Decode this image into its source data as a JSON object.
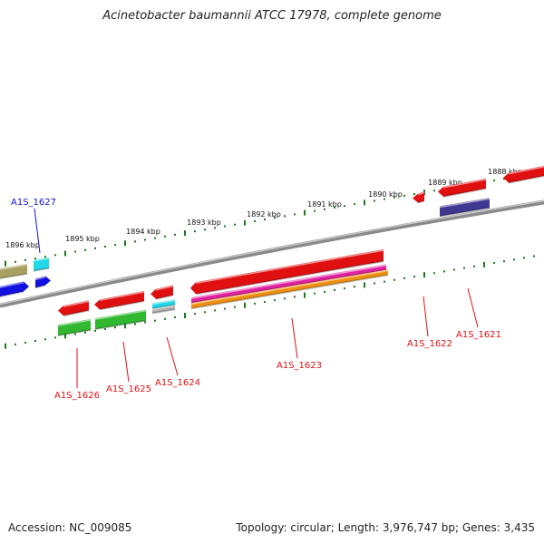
{
  "title": "Acinetobacter baumannii ATCC 17978, complete genome",
  "footer": {
    "accession": "Accession: NC_009085",
    "summary": "Topology: circular; Length: 3,976,747 bp; Genes: 3,435"
  },
  "colors": {
    "backbone": "#8a8a8a",
    "ticks": "#1e7a1e",
    "forward_label": "#1010cc",
    "reverse_label": "#dd1111"
  },
  "ruler": [
    {
      "label": "1888 kbp"
    },
    {
      "label": "1889 kbp"
    },
    {
      "label": "1890 kbp"
    },
    {
      "label": "1891 kbp"
    },
    {
      "label": "1892 kbp"
    },
    {
      "label": "1893 kbp"
    },
    {
      "label": "1894 kbp"
    },
    {
      "label": "1895 kbp"
    },
    {
      "label": "1896 kbp"
    }
  ],
  "gene_labels": [
    {
      "name": "A1S_1627",
      "strand": "forward"
    },
    {
      "name": "A1S_1626",
      "strand": "reverse"
    },
    {
      "name": "A1S_1625",
      "strand": "reverse"
    },
    {
      "name": "A1S_1624",
      "strand": "reverse"
    },
    {
      "name": "A1S_1623",
      "strand": "reverse"
    },
    {
      "name": "A1S_1622",
      "strand": "reverse"
    },
    {
      "name": "A1S_1621",
      "strand": "reverse"
    }
  ],
  "feature_colors": {
    "olive": "#a8a060",
    "cyan": "#20d8e8",
    "blue": "#1010e0",
    "red": "#e01010",
    "green": "#30b830",
    "magenta": "#e020a0",
    "orange": "#f09010",
    "navy": "#403890",
    "grey": "#b0b0b0"
  }
}
